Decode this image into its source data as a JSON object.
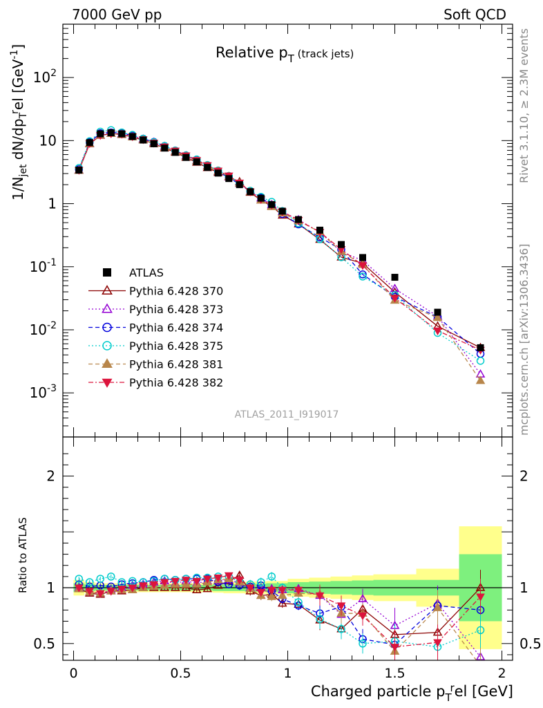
{
  "header": {
    "left": "7000 GeV pp",
    "right": "Soft QCD"
  },
  "side": {
    "rivet": "Rivet 3.1.10, ≥ 2.3M events",
    "mcplots": "mcplots.cern.ch [arXiv:1306.3436]"
  },
  "colors": {
    "ATLAS": "#000000",
    "370": "#8b0000",
    "373": "#9400d3",
    "374": "#0000dd",
    "375": "#00cccc",
    "381": "#b8864b",
    "382": "#dc143c",
    "band_inner": "#7ef07e",
    "band_outer": "#ffff8c"
  },
  "chart_data": {
    "type": "scatter",
    "title": "Relative pT (track jets)",
    "watermark": "ATLAS_2011_I919017",
    "xlabel": "Charged particle pT^rel [GeV]",
    "ylabel": "1/Njet dN/dpT^rel [GeV^-1]",
    "ratio_ylabel": "Ratio to ATLAS",
    "xlim": [
      -0.05,
      2.05
    ],
    "ylim": [
      0.0002,
      700
    ],
    "yscale": "log",
    "ratio_ylim": [
      0.35,
      2.35
    ],
    "x_ticks": [
      "0",
      "0.5",
      "1",
      "1.5",
      "2"
    ],
    "y_ticks": [
      "10^-3",
      "10^-2",
      "10^-1",
      "1",
      "10",
      "10^2"
    ],
    "ratio_y_ticks": [
      "0.5",
      "1",
      "2"
    ],
    "legend_position": "middle-left",
    "x": [
      0.025,
      0.075,
      0.125,
      0.175,
      0.225,
      0.275,
      0.325,
      0.375,
      0.425,
      0.475,
      0.525,
      0.575,
      0.625,
      0.675,
      0.725,
      0.775,
      0.825,
      0.875,
      0.925,
      0.975,
      1.05,
      1.15,
      1.25,
      1.35,
      1.5,
      1.7,
      1.9
    ],
    "data": {
      "name": "ATLAS",
      "values": [
        3.4,
        9.3,
        12.8,
        13.3,
        12.8,
        11.6,
        10.2,
        8.9,
        7.6,
        6.5,
        5.4,
        4.6,
        3.75,
        3.05,
        2.5,
        2.0,
        1.55,
        1.22,
        0.97,
        0.76,
        0.56,
        0.38,
        0.225,
        0.14,
        0.068,
        0.019,
        0.0052
      ]
    },
    "series": [
      {
        "name": "Pythia 6.428 370",
        "style": "solid-open-triangle-up",
        "ratio": [
          0.99,
          0.95,
          0.94,
          0.97,
          0.97,
          0.98,
          1.0,
          1.0,
          1.0,
          1.0,
          1.0,
          0.98,
          0.99,
          1.02,
          1.06,
          1.11,
          0.97,
          0.93,
          0.94,
          0.86,
          0.85,
          0.71,
          0.63,
          0.81,
          0.58,
          0.6,
          1.0
        ]
      },
      {
        "name": "Pythia 6.428 373",
        "style": "dotted-open-triangle-up",
        "ratio": [
          1.0,
          0.96,
          0.95,
          0.98,
          1.0,
          1.02,
          1.03,
          1.05,
          1.06,
          1.04,
          1.06,
          1.04,
          1.06,
          1.06,
          1.07,
          1.04,
          1.0,
          1.0,
          0.99,
          0.98,
          0.99,
          0.93,
          0.76,
          0.9,
          0.66,
          0.86,
          0.38
        ]
      },
      {
        "name": "Pythia 6.428 374",
        "style": "dashed-open-circle",
        "ratio": [
          1.03,
          1.01,
          1.02,
          1.01,
          1.03,
          1.04,
          1.05,
          1.07,
          1.08,
          1.07,
          1.08,
          1.08,
          1.08,
          1.05,
          1.03,
          1.02,
          1.01,
          1.02,
          0.97,
          0.9,
          0.84,
          0.77,
          0.83,
          0.54,
          0.49,
          0.84,
          0.8
        ]
      },
      {
        "name": "Pythia 6.428 375",
        "style": "dotted-open-circle",
        "ratio": [
          1.08,
          1.05,
          1.08,
          1.1,
          1.05,
          1.06,
          1.05,
          1.06,
          1.08,
          1.07,
          1.08,
          1.09,
          1.09,
          1.1,
          1.1,
          1.05,
          1.03,
          1.05,
          1.1,
          1.0,
          0.87,
          0.72,
          0.63,
          0.5,
          0.52,
          0.47,
          0.62
        ]
      },
      {
        "name": "Pythia 6.428 381",
        "style": "dashed-filled-triangle-up",
        "ratio": [
          0.99,
          0.96,
          0.95,
          0.97,
          0.98,
          0.98,
          1.0,
          1.01,
          1.02,
          1.03,
          1.03,
          1.03,
          1.05,
          1.07,
          1.08,
          1.05,
          0.99,
          0.93,
          0.92,
          0.93,
          0.95,
          0.94,
          0.77,
          0.77,
          0.43,
          0.82,
          0.3
        ]
      },
      {
        "name": "Pythia 6.428 382",
        "style": "dashdot-filled-triangle-down",
        "ratio": [
          1.0,
          0.97,
          0.95,
          0.97,
          0.99,
          1.0,
          1.02,
          1.03,
          1.05,
          1.06,
          1.07,
          1.06,
          1.08,
          1.09,
          1.11,
          1.07,
          1.0,
          0.96,
          0.98,
          0.98,
          0.98,
          0.93,
          0.84,
          0.75,
          0.47,
          0.51,
          0.92
        ]
      }
    ],
    "ratio_band": {
      "edges": [
        0.0,
        0.05,
        0.1,
        0.15,
        0.2,
        0.25,
        0.3,
        0.35,
        0.4,
        0.45,
        0.5,
        0.55,
        0.6,
        0.65,
        0.7,
        0.75,
        0.8,
        0.85,
        0.9,
        0.95,
        1.0,
        1.1,
        1.2,
        1.3,
        1.4,
        1.6,
        1.8,
        2.0
      ],
      "stat": [
        0.04,
        0.03,
        0.025,
        0.025,
        0.025,
        0.025,
        0.025,
        0.025,
        0.025,
        0.025,
        0.025,
        0.025,
        0.025,
        0.03,
        0.03,
        0.03,
        0.035,
        0.035,
        0.04,
        0.04,
        0.05,
        0.055,
        0.06,
        0.065,
        0.07,
        0.07,
        0.3
      ],
      "total": [
        0.07,
        0.05,
        0.04,
        0.04,
        0.04,
        0.04,
        0.04,
        0.04,
        0.04,
        0.04,
        0.04,
        0.04,
        0.04,
        0.045,
        0.05,
        0.05,
        0.055,
        0.055,
        0.06,
        0.06,
        0.08,
        0.09,
        0.1,
        0.11,
        0.12,
        0.17,
        0.55
      ]
    }
  }
}
